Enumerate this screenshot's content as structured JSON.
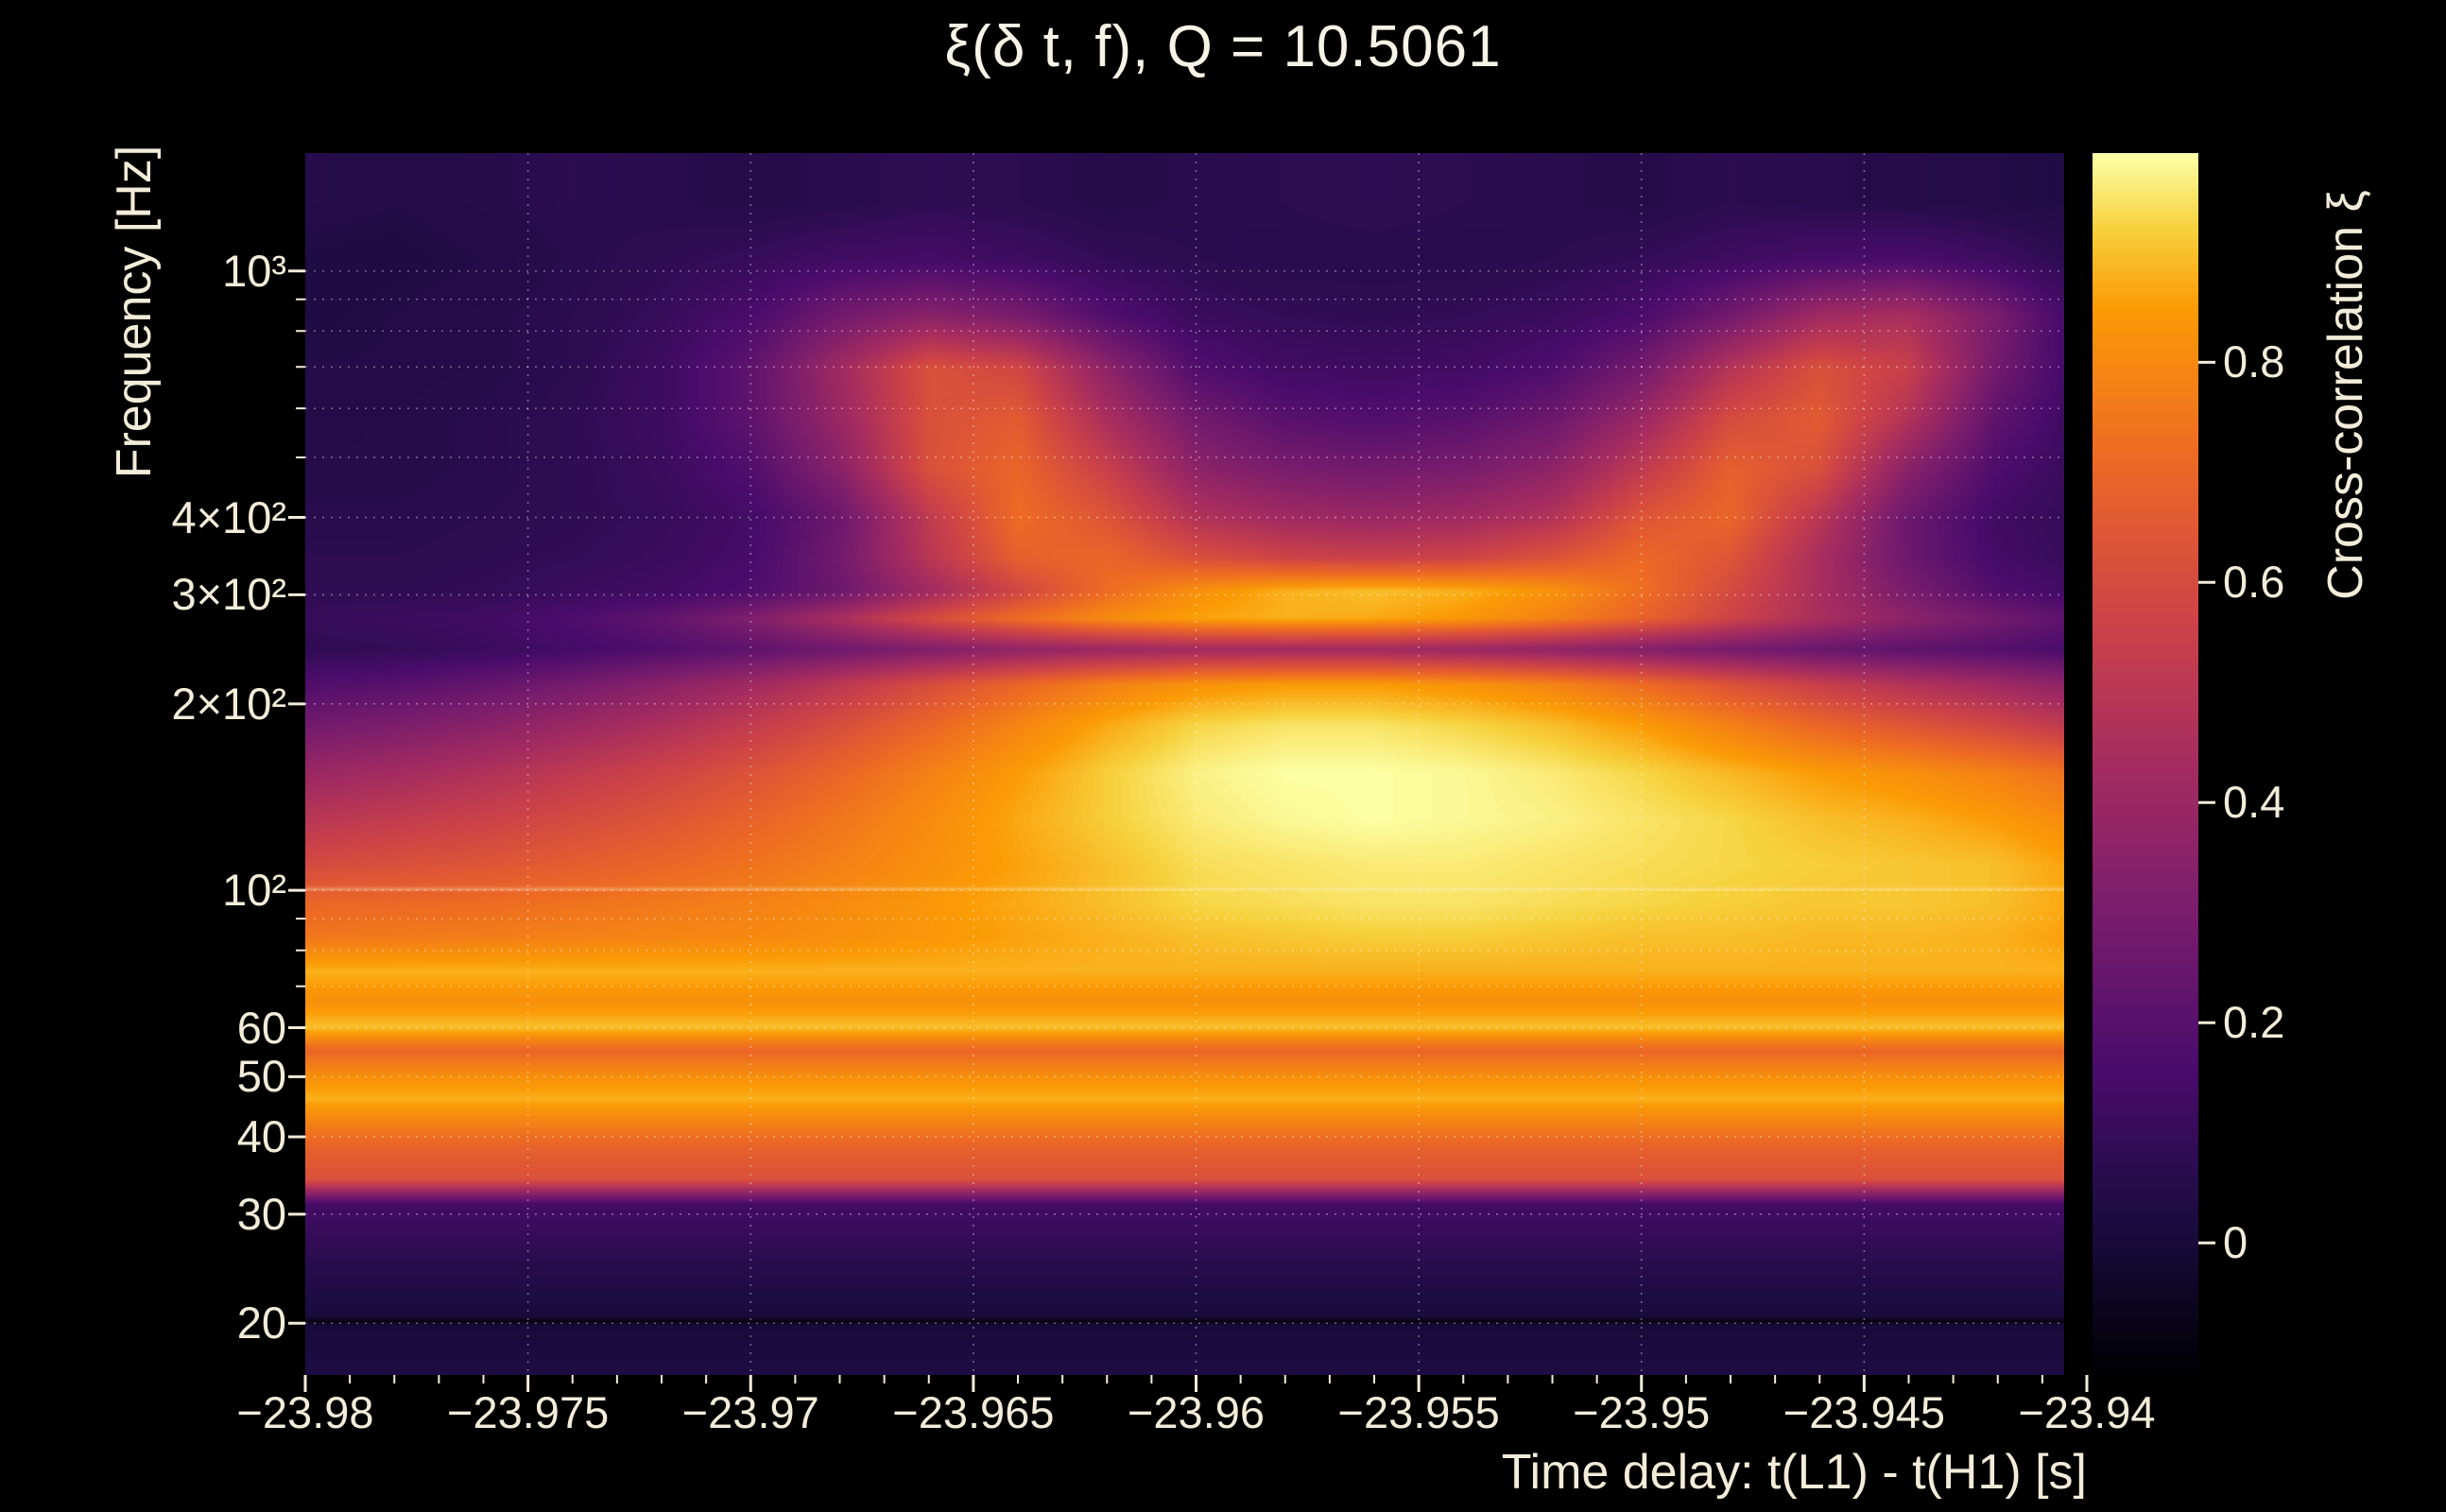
{
  "figure": {
    "colors": {
      "background": "#000000",
      "text": "#f2ecd9",
      "grid_line": "#ffffff"
    }
  },
  "chart_data": {
    "type": "heatmap",
    "title": "ξ(δ t, f), Q = 10.5061",
    "q": 10.5061,
    "xlabel": "Time delay: t(L1) - t(H1) [s]",
    "ylabel": "Frequency [Hz]",
    "colorbar_label": "Cross-correlation ξ",
    "x_range": [
      -23.98,
      -23.94
    ],
    "y_range_hz": [
      16.5,
      1550
    ],
    "y_scale": "log",
    "value_range": [
      -0.12,
      0.99
    ],
    "grid_on": true,
    "x_ticks": [
      {
        "t": -23.98,
        "label": "−23.98"
      },
      {
        "t": -23.975,
        "label": "−23.975"
      },
      {
        "t": -23.97,
        "label": "−23.97"
      },
      {
        "t": -23.965,
        "label": "−23.965"
      },
      {
        "t": -23.96,
        "label": "−23.96"
      },
      {
        "t": -23.955,
        "label": "−23.955"
      },
      {
        "t": -23.95,
        "label": "−23.95"
      },
      {
        "t": -23.945,
        "label": "−23.945"
      },
      {
        "t": -23.94,
        "label": "−23.94"
      }
    ],
    "y_ticks": [
      {
        "f": 1000,
        "label": "10³"
      },
      {
        "f": 400,
        "label": "4×10²"
      },
      {
        "f": 300,
        "label": "3×10²"
      },
      {
        "f": 200,
        "label": "2×10²"
      },
      {
        "f": 100,
        "label": "10²"
      },
      {
        "f": 60,
        "label": "60"
      },
      {
        "f": 50,
        "label": "50"
      },
      {
        "f": 40,
        "label": "40"
      },
      {
        "f": 30,
        "label": "30"
      },
      {
        "f": 20,
        "label": "20"
      }
    ],
    "y_minor_ticks_hz": [
      70,
      80,
      90,
      500,
      600,
      700,
      800,
      900
    ],
    "grid_y_hz": [
      20,
      30,
      40,
      50,
      60,
      70,
      80,
      90,
      100,
      200,
      300,
      400,
      500,
      600,
      700,
      800,
      900,
      1000
    ],
    "colorbar_ticks": [
      {
        "v": 0,
        "label": "0"
      },
      {
        "v": 0.2,
        "label": "0.2"
      },
      {
        "v": 0.4,
        "label": "0.4"
      },
      {
        "v": 0.6,
        "label": "0.6"
      },
      {
        "v": 0.8,
        "label": "0.8"
      }
    ],
    "colormap": {
      "name": "inferno",
      "stops": [
        [
          0.0,
          [
            0,
            0,
            4
          ]
        ],
        [
          0.125,
          [
            27,
            12,
            65
          ]
        ],
        [
          0.25,
          [
            74,
            12,
            107
          ]
        ],
        [
          0.375,
          [
            120,
            28,
            109
          ]
        ],
        [
          0.5,
          [
            165,
            44,
            96
          ]
        ],
        [
          0.625,
          [
            207,
            68,
            70
          ]
        ],
        [
          0.75,
          [
            237,
            105,
            37
          ]
        ],
        [
          0.875,
          [
            251,
            155,
            6
          ]
        ],
        [
          0.94,
          [
            247,
            209,
            61
          ]
        ],
        [
          1.0,
          [
            252,
            255,
            164
          ]
        ]
      ]
    },
    "spectral_lines": {
      "dark_line_hz": 20,
      "bright_line_hz": 100
    },
    "grid": {
      "time_bins": 21,
      "time_start": -23.98,
      "time_step": 0.002,
      "rows": [
        {
          "f": 16,
          "v": 0.03
        },
        {
          "f": 20,
          "v": 0.0
        },
        {
          "f": 24,
          "v": 0.05
        },
        {
          "f": 28,
          "v": 0.1
        },
        {
          "f": 31,
          "v": 0.14
        },
        {
          "f": 34,
          "v": 0.62
        },
        {
          "f": 38,
          "v": 0.68
        },
        {
          "f": 42,
          "v": 0.78
        },
        {
          "f": 46,
          "v": 0.88
        },
        {
          "f": 50,
          "v": 0.82
        },
        {
          "f": 55,
          "v": 0.7
        },
        {
          "f": 60,
          "v": 0.9
        },
        {
          "f": 66,
          "v": 0.82
        },
        {
          "f": 74,
          "v": 0.88
        },
        {
          "f": 84,
          "v": [
            0.75,
            0.76,
            0.77,
            0.78,
            0.79,
            0.8,
            0.82,
            0.84,
            0.86,
            0.88,
            0.9,
            0.91,
            0.92,
            0.92,
            0.91,
            0.9,
            0.9,
            0.89,
            0.89,
            0.88,
            0.85
          ]
        },
        {
          "f": 95,
          "v": [
            0.7,
            0.71,
            0.72,
            0.74,
            0.76,
            0.78,
            0.81,
            0.84,
            0.87,
            0.9,
            0.93,
            0.94,
            0.95,
            0.95,
            0.94,
            0.93,
            0.92,
            0.91,
            0.91,
            0.9,
            0.86
          ]
        },
        {
          "f": 110,
          "v": [
            0.6,
            0.62,
            0.64,
            0.67,
            0.7,
            0.74,
            0.78,
            0.82,
            0.86,
            0.9,
            0.94,
            0.95,
            0.96,
            0.96,
            0.95,
            0.94,
            0.93,
            0.92,
            0.91,
            0.9,
            0.85
          ]
        },
        {
          "f": 130,
          "v": [
            0.5,
            0.53,
            0.56,
            0.6,
            0.64,
            0.69,
            0.75,
            0.81,
            0.87,
            0.92,
            0.96,
            0.98,
            0.99,
            0.98,
            0.97,
            0.95,
            0.93,
            0.9,
            0.88,
            0.85,
            0.8
          ]
        },
        {
          "f": 155,
          "v": [
            0.4,
            0.43,
            0.47,
            0.52,
            0.57,
            0.63,
            0.7,
            0.78,
            0.85,
            0.92,
            0.97,
            0.99,
            0.99,
            0.98,
            0.96,
            0.93,
            0.89,
            0.85,
            0.82,
            0.78,
            0.72
          ]
        },
        {
          "f": 185,
          "v": [
            0.28,
            0.31,
            0.35,
            0.4,
            0.46,
            0.53,
            0.61,
            0.7,
            0.79,
            0.87,
            0.93,
            0.95,
            0.95,
            0.93,
            0.9,
            0.85,
            0.78,
            0.7,
            0.64,
            0.58,
            0.5
          ]
        },
        {
          "f": 215,
          "v": [
            0.18,
            0.2,
            0.24,
            0.29,
            0.35,
            0.42,
            0.51,
            0.61,
            0.7,
            0.78,
            0.83,
            0.85,
            0.85,
            0.83,
            0.79,
            0.72,
            0.63,
            0.55,
            0.48,
            0.42,
            0.35
          ]
        },
        {
          "f": 245,
          "v": [
            0.08,
            0.09,
            0.11,
            0.14,
            0.18,
            0.22,
            0.27,
            0.32,
            0.37,
            0.4,
            0.42,
            0.42,
            0.42,
            0.4,
            0.37,
            0.33,
            0.29,
            0.25,
            0.22,
            0.19,
            0.15
          ]
        },
        {
          "f": 275,
          "v": [
            0.1,
            0.11,
            0.13,
            0.17,
            0.23,
            0.32,
            0.45,
            0.6,
            0.72,
            0.81,
            0.86,
            0.88,
            0.87,
            0.84,
            0.78,
            0.69,
            0.57,
            0.45,
            0.36,
            0.28,
            0.2
          ]
        },
        {
          "f": 305,
          "v": [
            0.08,
            0.08,
            0.09,
            0.11,
            0.13,
            0.17,
            0.26,
            0.42,
            0.58,
            0.72,
            0.82,
            0.88,
            0.9,
            0.88,
            0.83,
            0.73,
            0.6,
            0.45,
            0.3,
            0.18,
            0.12
          ]
        },
        {
          "f": 345,
          "v": [
            0.07,
            0.07,
            0.08,
            0.09,
            0.11,
            0.15,
            0.28,
            0.5,
            0.68,
            0.7,
            0.62,
            0.57,
            0.55,
            0.57,
            0.63,
            0.71,
            0.64,
            0.45,
            0.26,
            0.14,
            0.09
          ]
        },
        {
          "f": 400,
          "v": [
            0.06,
            0.06,
            0.07,
            0.08,
            0.1,
            0.14,
            0.26,
            0.52,
            0.72,
            0.64,
            0.48,
            0.42,
            0.4,
            0.42,
            0.48,
            0.64,
            0.7,
            0.5,
            0.26,
            0.13,
            0.08
          ]
        },
        {
          "f": 480,
          "v": [
            0.05,
            0.05,
            0.06,
            0.08,
            0.11,
            0.18,
            0.35,
            0.62,
            0.7,
            0.55,
            0.36,
            0.3,
            0.28,
            0.3,
            0.36,
            0.52,
            0.68,
            0.62,
            0.35,
            0.17,
            0.09
          ]
        },
        {
          "f": 580,
          "v": [
            0.04,
            0.05,
            0.06,
            0.08,
            0.12,
            0.22,
            0.4,
            0.62,
            0.66,
            0.45,
            0.28,
            0.2,
            0.18,
            0.2,
            0.26,
            0.4,
            0.6,
            0.66,
            0.48,
            0.22,
            0.1
          ]
        },
        {
          "f": 700,
          "v": [
            0.04,
            0.04,
            0.05,
            0.07,
            0.12,
            0.22,
            0.42,
            0.62,
            0.58,
            0.36,
            0.18,
            0.13,
            0.12,
            0.13,
            0.17,
            0.28,
            0.48,
            0.62,
            0.55,
            0.28,
            0.1
          ]
        },
        {
          "f": 850,
          "v": [
            0.03,
            0.04,
            0.05,
            0.07,
            0.1,
            0.16,
            0.28,
            0.35,
            0.3,
            0.18,
            0.11,
            0.09,
            0.08,
            0.09,
            0.11,
            0.16,
            0.28,
            0.42,
            0.45,
            0.3,
            0.1
          ]
        },
        {
          "f": 1050,
          "v": [
            0.03,
            0.03,
            0.04,
            0.06,
            0.08,
            0.1,
            0.13,
            0.14,
            0.12,
            0.09,
            0.07,
            0.06,
            0.06,
            0.06,
            0.07,
            0.09,
            0.12,
            0.15,
            0.16,
            0.12,
            0.06
          ]
        },
        {
          "f": 1300,
          "v": [
            0.05,
            0.04,
            0.05,
            0.07,
            0.06,
            0.05,
            0.06,
            0.08,
            0.07,
            0.05,
            0.06,
            0.07,
            0.08,
            0.07,
            0.06,
            0.05,
            0.07,
            0.06,
            0.05,
            0.04,
            0.03
          ]
        }
      ]
    }
  }
}
